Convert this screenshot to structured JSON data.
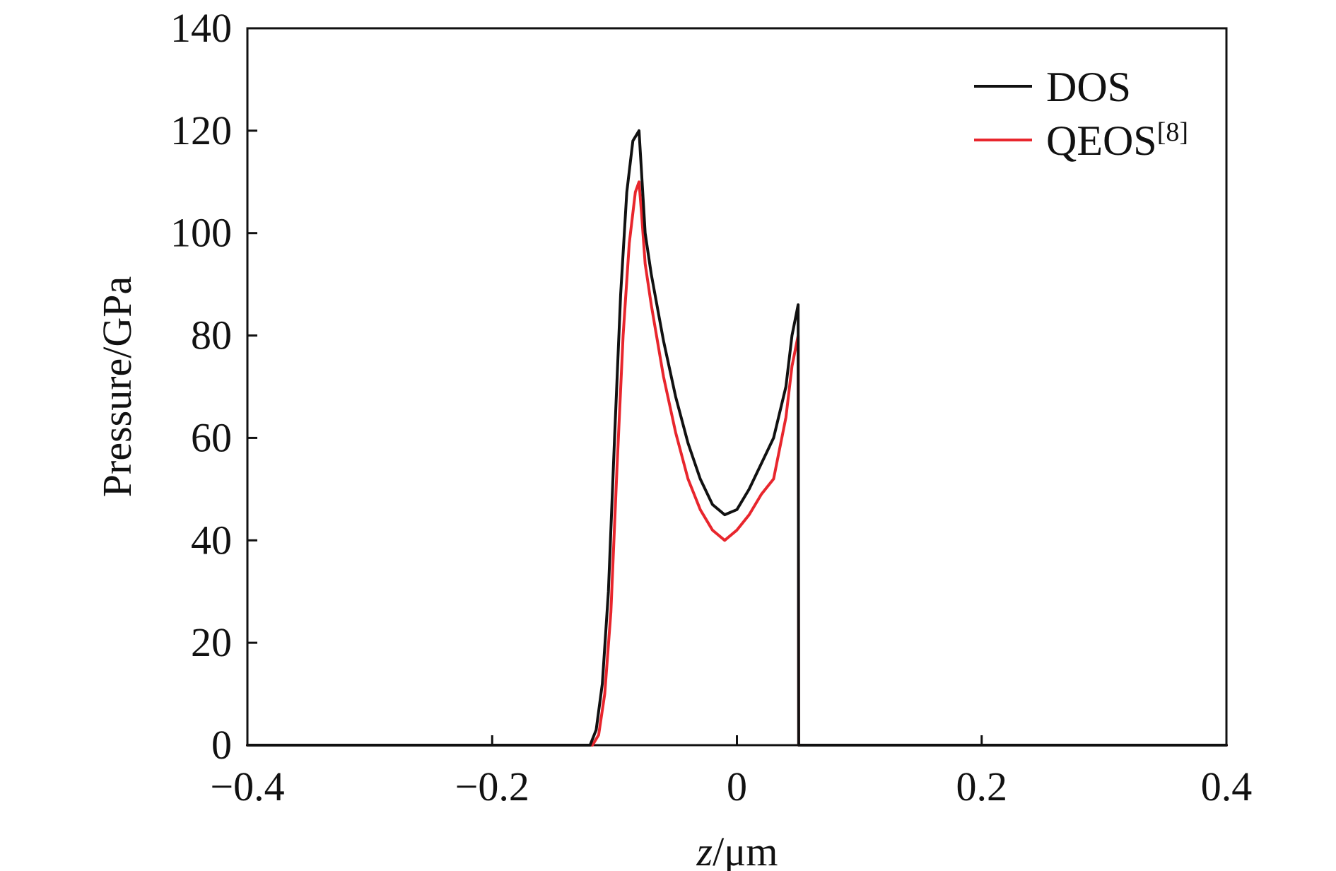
{
  "chart_data": {
    "type": "line",
    "title": "",
    "xlabel": {
      "italic": "z",
      "rest": "/μm"
    },
    "ylabel": "Pressure/GPa",
    "xlim": [
      -0.4,
      0.4
    ],
    "ylim": [
      0,
      140
    ],
    "x_ticks": [
      -0.4,
      -0.2,
      0,
      0.2,
      0.4
    ],
    "x_tick_labels": [
      "−0.4",
      "−0.2",
      "0",
      "0.2",
      "0.4"
    ],
    "y_ticks": [
      0,
      20,
      40,
      60,
      80,
      100,
      120,
      140
    ],
    "y_tick_labels": [
      "0",
      "20",
      "40",
      "60",
      "80",
      "100",
      "120",
      "140"
    ],
    "grid": false,
    "legend": {
      "position": "top-right"
    },
    "series": [
      {
        "name": "DOS",
        "name_sup": "",
        "color": "#111111",
        "x": [
          -0.4,
          -0.12,
          -0.115,
          -0.11,
          -0.105,
          -0.1,
          -0.095,
          -0.09,
          -0.085,
          -0.08,
          -0.078,
          -0.075,
          -0.07,
          -0.06,
          -0.05,
          -0.04,
          -0.03,
          -0.02,
          -0.01,
          0.0,
          0.01,
          0.02,
          0.03,
          0.04,
          0.045,
          0.05,
          0.0505,
          0.4
        ],
        "y": [
          0,
          0,
          3,
          12,
          30,
          60,
          88,
          108,
          118,
          120,
          112,
          100,
          92,
          79,
          68,
          59,
          52,
          47,
          45,
          46,
          50,
          55,
          60,
          70,
          80,
          86,
          0,
          0
        ]
      },
      {
        "name": "QEOS",
        "name_sup": "[8]",
        "color": "#e8262d",
        "x": [
          -0.4,
          -0.118,
          -0.113,
          -0.108,
          -0.103,
          -0.098,
          -0.093,
          -0.088,
          -0.083,
          -0.08,
          -0.078,
          -0.075,
          -0.07,
          -0.06,
          -0.05,
          -0.04,
          -0.03,
          -0.02,
          -0.01,
          0.0,
          0.01,
          0.02,
          0.03,
          0.04,
          0.045,
          0.05,
          0.0505,
          0.4
        ],
        "y": [
          0,
          0,
          2,
          10,
          26,
          54,
          80,
          98,
          108,
          110,
          104,
          94,
          86,
          72,
          61,
          52,
          46,
          42,
          40,
          42,
          45,
          49,
          52,
          64,
          74,
          80,
          0,
          0
        ]
      }
    ]
  }
}
